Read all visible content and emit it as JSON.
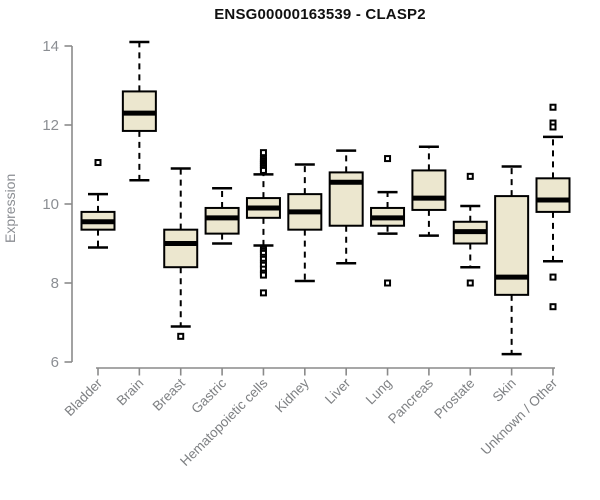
{
  "title": "ENSG00000163539 - CLASP2",
  "chart_data": {
    "type": "boxplot",
    "title": "ENSG00000163539 - CLASP2",
    "xlabel": "",
    "ylabel": "Expression",
    "ylim": [
      6,
      14
    ],
    "yticks": [
      6,
      8,
      10,
      12,
      14
    ],
    "grid": false,
    "legend": "none",
    "categories": [
      "Bladder",
      "Brain",
      "Breast",
      "Gastric",
      "Hematopoietic cells",
      "Kidney",
      "Liver",
      "Lung",
      "Pancreas",
      "Prostate",
      "Skin",
      "Unknown / Other"
    ],
    "series": [
      {
        "name": "Bladder",
        "whisker_low": 8.9,
        "q1": 9.35,
        "median": 9.55,
        "q3": 9.8,
        "whisker_high": 10.25,
        "outliers": [
          11.05
        ]
      },
      {
        "name": "Brain",
        "whisker_low": 10.6,
        "q1": 11.85,
        "median": 12.3,
        "q3": 12.85,
        "whisker_high": 14.1,
        "outliers": []
      },
      {
        "name": "Breast",
        "whisker_low": 6.9,
        "q1": 8.4,
        "median": 9.0,
        "q3": 9.35,
        "whisker_high": 10.9,
        "outliers": [
          6.65
        ]
      },
      {
        "name": "Gastric",
        "whisker_low": 9.0,
        "q1": 9.25,
        "median": 9.65,
        "q3": 9.9,
        "whisker_high": 10.4,
        "outliers": []
      },
      {
        "name": "Hematopoietic cells",
        "whisker_low": 8.95,
        "q1": 9.65,
        "median": 9.9,
        "q3": 10.15,
        "whisker_high": 10.75,
        "outliers": [
          11.3,
          11.15,
          11.1,
          11.05,
          11.0,
          10.95,
          10.9,
          10.85,
          8.85,
          8.8,
          8.75,
          8.65,
          8.6,
          8.5,
          8.45,
          8.35,
          8.25,
          8.2,
          7.75
        ]
      },
      {
        "name": "Kidney",
        "whisker_low": 8.05,
        "q1": 9.35,
        "median": 9.8,
        "q3": 10.25,
        "whisker_high": 11.0,
        "outliers": []
      },
      {
        "name": "Liver",
        "whisker_low": 8.5,
        "q1": 9.45,
        "median": 10.55,
        "q3": 10.8,
        "whisker_high": 11.35,
        "outliers": []
      },
      {
        "name": "Lung",
        "whisker_low": 9.25,
        "q1": 9.45,
        "median": 9.65,
        "q3": 9.9,
        "whisker_high": 10.3,
        "outliers": [
          11.15,
          8.0
        ]
      },
      {
        "name": "Pancreas",
        "whisker_low": 9.2,
        "q1": 9.85,
        "median": 10.15,
        "q3": 10.85,
        "whisker_high": 11.45,
        "outliers": []
      },
      {
        "name": "Prostate",
        "whisker_low": 8.4,
        "q1": 9.0,
        "median": 9.3,
        "q3": 9.55,
        "whisker_high": 9.95,
        "outliers": [
          10.7,
          8.0
        ]
      },
      {
        "name": "Skin",
        "whisker_low": 6.2,
        "q1": 7.7,
        "median": 8.15,
        "q3": 10.2,
        "whisker_high": 10.95,
        "outliers": []
      },
      {
        "name": "Unknown / Other",
        "whisker_low": 8.55,
        "q1": 9.8,
        "median": 10.1,
        "q3": 10.65,
        "whisker_high": 11.7,
        "outliers": [
          12.45,
          12.05,
          11.95,
          8.15,
          7.4
        ]
      }
    ],
    "colors": {
      "box_fill": "#ece7cf",
      "box_border": "#000000",
      "median": "#000000",
      "whisker": "#000000",
      "outlier": "#000000",
      "axis": "#8a8a8a",
      "y_tick_label": "#8b8e93",
      "x_tick_label": "#7e8083",
      "title": "#111111"
    }
  }
}
